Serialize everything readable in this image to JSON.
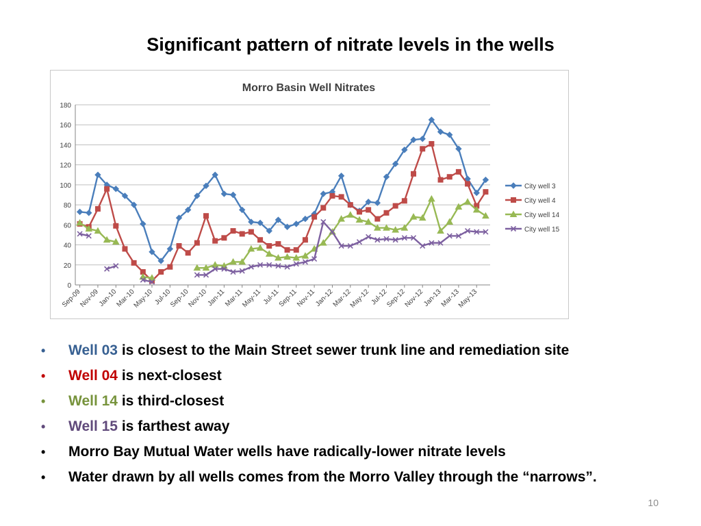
{
  "slide": {
    "title": "Significant pattern of nitrate levels in the wells",
    "page_number": "10"
  },
  "bullets": [
    {
      "highlight": "Well 03",
      "highlight_color": "#376092",
      "text": " is closest to the Main Street sewer trunk line and remediation site",
      "bullet_color": "#376092"
    },
    {
      "highlight": "Well 04",
      "highlight_color": "#c00000",
      "text": " is next-closest",
      "bullet_color": "#c00000"
    },
    {
      "highlight": "Well 14",
      "highlight_color": "#77933c",
      "text": " is third-closest",
      "bullet_color": "#77933c"
    },
    {
      "highlight": "Well 15",
      "highlight_color": "#604a7b",
      "text": " is farthest away",
      "bullet_color": "#604a7b"
    },
    {
      "highlight": "",
      "highlight_color": "#000000",
      "text": "Morro Bay Mutual Water wells have radically-lower nitrate levels",
      "bullet_color": "#000000"
    },
    {
      "highlight": "",
      "highlight_color": "#000000",
      "text": "Water drawn by all wells comes from the Morro Valley through the “narrows”.",
      "bullet_color": "#000000"
    }
  ],
  "chart_data": {
    "type": "line",
    "title": "Morro Basin Well Nitrates",
    "xlabel": "",
    "ylabel": "",
    "ylim": [
      0,
      180
    ],
    "yticks": [
      0,
      20,
      40,
      60,
      80,
      100,
      120,
      140,
      160,
      180
    ],
    "grid": true,
    "legend_position": "right",
    "x": [
      "Sep-09",
      "Oct-09",
      "Nov-09",
      "Dec-09",
      "Jan-10",
      "Feb-10",
      "Mar-10",
      "Apr-10",
      "May-10",
      "Jun-10",
      "Jul-10",
      "Aug-10",
      "Sep-10",
      "Oct-10",
      "Nov-10",
      "Dec-10",
      "Jan-11",
      "Feb-11",
      "Mar-11",
      "Apr-11",
      "May-11",
      "Jun-11",
      "Jul-11",
      "Aug-11",
      "Sep-11",
      "Oct-11",
      "Nov-11",
      "Dec-11",
      "Jan-12",
      "Feb-12",
      "Mar-12",
      "Apr-12",
      "May-12",
      "Jun-12",
      "Jul-12",
      "Aug-12",
      "Sep-12",
      "Oct-12",
      "Nov-12",
      "Dec-12",
      "Jan-13",
      "Feb-13",
      "Mar-13",
      "Apr-13",
      "May-13",
      "Jun-13"
    ],
    "x_tick_labels": [
      "Sep-09",
      "Nov-09",
      "Jan-10",
      "Mar-10",
      "May-10",
      "Jul-10",
      "Sep-10",
      "Nov-10",
      "Jan-11",
      "Mar-11",
      "May-11",
      "Jul-11",
      "Sep-11",
      "Nov-11",
      "Jan-12",
      "Mar-12",
      "May-12",
      "Jul-12",
      "Sep-12",
      "Nov-12",
      "Jan-13",
      "Mar-13",
      "May-13"
    ],
    "series": [
      {
        "name": "City well 3",
        "color": "#4a7ebb",
        "marker": "diamond",
        "values": [
          73,
          72,
          110,
          100,
          96,
          89,
          80,
          61,
          33,
          24,
          36,
          67,
          75,
          89,
          99,
          110,
          91,
          90,
          75,
          63,
          62,
          54,
          65,
          58,
          61,
          66,
          71,
          91,
          93,
          109,
          80,
          74,
          83,
          82,
          108,
          121,
          135,
          145,
          146,
          165,
          153,
          150,
          136,
          106,
          92,
          105
        ]
      },
      {
        "name": "City well 4",
        "color": "#be4b48",
        "marker": "square",
        "values": [
          61,
          58,
          76,
          96,
          59,
          36,
          22,
          13,
          4,
          13,
          18,
          39,
          32,
          42,
          69,
          44,
          47,
          54,
          51,
          53,
          45,
          39,
          41,
          35,
          35,
          45,
          68,
          77,
          89,
          88,
          80,
          73,
          75,
          66,
          72,
          79,
          84,
          111,
          136,
          141,
          105,
          108,
          113,
          101,
          79,
          93
        ]
      },
      {
        "name": "City well 14",
        "color": "#98b954",
        "marker": "triangle",
        "values": [
          62,
          56,
          54,
          45,
          43,
          null,
          null,
          8,
          7,
          null,
          null,
          null,
          null,
          17,
          17,
          20,
          19,
          23,
          23,
          36,
          37,
          31,
          27,
          28,
          27,
          29,
          36,
          42,
          53,
          66,
          70,
          65,
          63,
          57,
          57,
          55,
          57,
          68,
          67,
          86,
          54,
          63,
          78,
          83,
          75,
          69
        ]
      },
      {
        "name": "City well 15",
        "color": "#7d60a0",
        "marker": "x",
        "values": [
          51,
          49,
          null,
          16,
          19,
          null,
          null,
          5,
          3,
          null,
          null,
          null,
          null,
          10,
          10,
          16,
          16,
          13,
          14,
          18,
          20,
          20,
          19,
          18,
          21,
          23,
          26,
          63,
          53,
          39,
          39,
          43,
          48,
          45,
          46,
          45,
          47,
          47,
          39,
          42,
          42,
          49,
          49,
          54,
          53,
          53
        ]
      }
    ]
  }
}
